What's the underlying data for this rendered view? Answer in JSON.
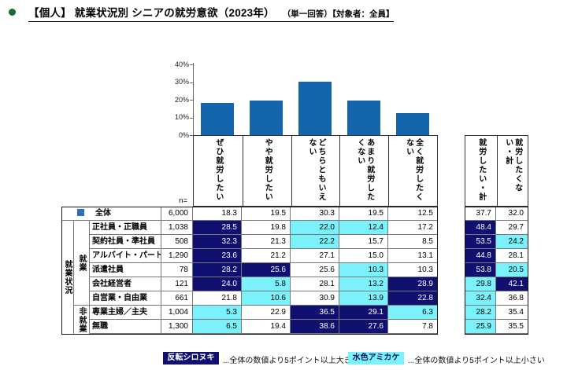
{
  "title": {
    "main": "【個人】 就業状況別 シニアの就労意欲（2023年）",
    "sub": "（単一回答）【対象者：全員】"
  },
  "colors": {
    "bar_blue": "#1565ac",
    "marker_blue": "#2f6db6",
    "highlight_navy": "#101070",
    "highlight_cyan": "#7bf2fb",
    "bullet_green": "#1c6b30"
  },
  "chart_data": {
    "type": "bar",
    "title": "シニアの就労意欲（2023年）全体",
    "categories": [
      "ぜひ就労したい",
      "やや就労したい",
      "どちらともいえない",
      "あまり就労したくない",
      "全く就労したくない"
    ],
    "values": [
      18.3,
      19.5,
      30.3,
      19.5,
      12.5
    ],
    "xlabel": "",
    "ylabel": "",
    "ylim": [
      0,
      40
    ],
    "yticks": [
      "0%",
      "10%",
      "20%",
      "30%",
      "40%"
    ],
    "grid": false,
    "legend": "none"
  },
  "table": {
    "n_label": "n=",
    "group_label": "就業状況",
    "subgroups": [
      {
        "label": "就業",
        "rows": 6
      },
      {
        "label": "非就業",
        "rows": 2
      }
    ],
    "columns": [
      "ぜひ就労したい",
      "やや就労したい",
      "どちらともいえない",
      "あまり就労したくない",
      "全く就労したくない"
    ],
    "total_columns": [
      "就労したい・計",
      "就労したくない・計"
    ],
    "rows": [
      {
        "label": "全体",
        "n": "6,000",
        "values": [
          "18.3",
          "19.5",
          "30.3",
          "19.5",
          "12.5"
        ],
        "highlights": [
          "none",
          "none",
          "none",
          "none",
          "none"
        ],
        "totals": [
          "37.7",
          "32.0"
        ],
        "total_highlights": [
          "none",
          "none"
        ],
        "marker": true
      },
      {
        "label": "正社員・正職員",
        "n": "1,038",
        "values": [
          "28.5",
          "19.8",
          "22.0",
          "12.4",
          "17.2"
        ],
        "highlights": [
          "navy",
          "none",
          "cyan",
          "cyan",
          "none"
        ],
        "totals": [
          "48.4",
          "29.7"
        ],
        "total_highlights": [
          "navy",
          "none"
        ],
        "marker": false
      },
      {
        "label": "契約社員・準社員",
        "n": "508",
        "values": [
          "32.3",
          "21.3",
          "22.2",
          "15.7",
          "8.5"
        ],
        "highlights": [
          "navy",
          "none",
          "cyan",
          "none",
          "none"
        ],
        "totals": [
          "53.5",
          "24.2"
        ],
        "total_highlights": [
          "navy",
          "cyan"
        ],
        "marker": false
      },
      {
        "label": "アルバイト・パート",
        "n": "1,290",
        "values": [
          "23.6",
          "21.2",
          "27.1",
          "15.0",
          "13.1"
        ],
        "highlights": [
          "navy",
          "none",
          "none",
          "none",
          "none"
        ],
        "totals": [
          "44.8",
          "28.1"
        ],
        "total_highlights": [
          "navy",
          "none"
        ],
        "marker": false
      },
      {
        "label": "派遣社員",
        "n": "78",
        "values": [
          "28.2",
          "25.6",
          "25.6",
          "10.3",
          "10.3"
        ],
        "highlights": [
          "navy",
          "navy",
          "none",
          "cyan",
          "none"
        ],
        "totals": [
          "53.8",
          "20.5"
        ],
        "total_highlights": [
          "navy",
          "cyan"
        ],
        "marker": false
      },
      {
        "label": "会社経営者",
        "n": "121",
        "values": [
          "24.0",
          "5.8",
          "28.1",
          "13.2",
          "28.9"
        ],
        "highlights": [
          "navy",
          "cyan",
          "none",
          "cyan",
          "navy"
        ],
        "totals": [
          "29.8",
          "42.1"
        ],
        "total_highlights": [
          "cyan",
          "navy"
        ],
        "marker": false
      },
      {
        "label": "自営業・自由業",
        "n": "661",
        "values": [
          "21.8",
          "10.6",
          "30.9",
          "13.9",
          "22.8"
        ],
        "highlights": [
          "none",
          "cyan",
          "none",
          "cyan",
          "navy"
        ],
        "totals": [
          "32.4",
          "36.8"
        ],
        "total_highlights": [
          "cyan",
          "none"
        ],
        "marker": false
      },
      {
        "label": "専業主婦／主夫",
        "n": "1,004",
        "values": [
          "5.3",
          "22.9",
          "36.5",
          "29.1",
          "6.3"
        ],
        "highlights": [
          "cyan",
          "none",
          "navy",
          "navy",
          "cyan"
        ],
        "totals": [
          "28.2",
          "35.4"
        ],
        "total_highlights": [
          "cyan",
          "none"
        ],
        "marker": false
      },
      {
        "label": "無職",
        "n": "1,300",
        "values": [
          "6.5",
          "19.4",
          "38.6",
          "27.6",
          "7.8"
        ],
        "highlights": [
          "cyan",
          "none",
          "navy",
          "navy",
          "none"
        ],
        "totals": [
          "25.9",
          "35.5"
        ],
        "total_highlights": [
          "cyan",
          "none"
        ],
        "marker": false
      }
    ]
  },
  "legend": {
    "items": [
      {
        "box": "反転シロヌキ",
        "style": "navy",
        "text": "...全体の数値より5ポイント以上大きい"
      },
      {
        "box": "水色アミカケ",
        "style": "cyan",
        "text": "...全体の数値より5ポイント以上小さい"
      }
    ]
  }
}
